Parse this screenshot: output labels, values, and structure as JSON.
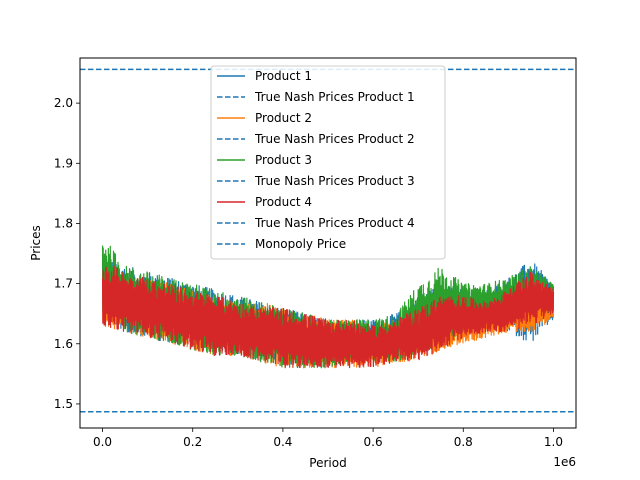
{
  "chart_data": {
    "type": "line",
    "title": "",
    "xlabel": "Period",
    "ylabel": "Prices",
    "x_offset_label": "1e6",
    "xlim": [
      -0.05,
      1.05
    ],
    "ylim": [
      1.46,
      2.075
    ],
    "x_scale_factor": 1000000,
    "x_ticks": [
      0.0,
      0.2,
      0.4,
      0.6,
      0.8,
      1.0
    ],
    "x_tick_labels": [
      "0.0",
      "0.2",
      "0.4",
      "0.6",
      "0.8",
      "1.0"
    ],
    "y_ticks": [
      1.5,
      1.6,
      1.7,
      1.8,
      1.9,
      2.0
    ],
    "y_tick_labels": [
      "1.5",
      "1.6",
      "1.7",
      "1.8",
      "1.9",
      "2.0"
    ],
    "grid": false,
    "legend_position": "upper-center",
    "reference_lines": [
      {
        "name": "True Nash Prices Product 1",
        "value": 1.487,
        "color": "#1f77b4",
        "style": "dashed"
      },
      {
        "name": "True Nash Prices Product 2",
        "value": 1.487,
        "color": "#1f77b4",
        "style": "dashed"
      },
      {
        "name": "True Nash Prices Product 3",
        "value": 1.487,
        "color": "#1f77b4",
        "style": "dashed"
      },
      {
        "name": "True Nash Prices Product 4",
        "value": 1.487,
        "color": "#1f77b4",
        "style": "dashed"
      },
      {
        "name": "Monopoly Price",
        "value": 2.056,
        "color": "#1f77b4",
        "style": "dashed"
      }
    ],
    "series": [
      {
        "name": "Product 1",
        "color": "#1f77b4",
        "x": [
          0.0,
          0.05,
          0.1,
          0.15,
          0.2,
          0.25,
          0.3,
          0.35,
          0.4,
          0.45,
          0.5,
          0.55,
          0.6,
          0.65,
          0.7,
          0.75,
          0.8,
          0.85,
          0.9,
          0.95,
          1.0
        ],
        "low": [
          1.64,
          1.62,
          1.61,
          1.6,
          1.6,
          1.59,
          1.58,
          1.57,
          1.57,
          1.56,
          1.57,
          1.57,
          1.57,
          1.58,
          1.58,
          1.6,
          1.62,
          1.62,
          1.62,
          1.6,
          1.64
        ],
        "high": [
          1.75,
          1.73,
          1.72,
          1.71,
          1.7,
          1.69,
          1.68,
          1.67,
          1.66,
          1.65,
          1.64,
          1.64,
          1.64,
          1.65,
          1.68,
          1.7,
          1.69,
          1.69,
          1.71,
          1.74,
          1.7
        ]
      },
      {
        "name": "Product 2",
        "color": "#ff7f0e",
        "x": [
          0.0,
          0.05,
          0.1,
          0.15,
          0.2,
          0.25,
          0.3,
          0.35,
          0.4,
          0.45,
          0.5,
          0.55,
          0.6,
          0.65,
          0.7,
          0.75,
          0.8,
          0.85,
          0.9,
          0.95,
          1.0
        ],
        "low": [
          1.63,
          1.62,
          1.61,
          1.6,
          1.59,
          1.58,
          1.58,
          1.57,
          1.56,
          1.56,
          1.56,
          1.56,
          1.56,
          1.57,
          1.57,
          1.59,
          1.6,
          1.61,
          1.62,
          1.62,
          1.64
        ],
        "high": [
          1.74,
          1.72,
          1.71,
          1.7,
          1.69,
          1.68,
          1.67,
          1.67,
          1.66,
          1.65,
          1.64,
          1.64,
          1.63,
          1.64,
          1.66,
          1.68,
          1.67,
          1.67,
          1.67,
          1.69,
          1.7
        ]
      },
      {
        "name": "Product 3",
        "color": "#2ca02c",
        "x": [
          0.0,
          0.05,
          0.1,
          0.15,
          0.2,
          0.25,
          0.3,
          0.35,
          0.4,
          0.45,
          0.5,
          0.55,
          0.6,
          0.65,
          0.7,
          0.75,
          0.8,
          0.85,
          0.9,
          0.95,
          1.0
        ],
        "low": [
          1.64,
          1.62,
          1.61,
          1.6,
          1.59,
          1.58,
          1.58,
          1.57,
          1.56,
          1.56,
          1.56,
          1.57,
          1.57,
          1.57,
          1.58,
          1.6,
          1.62,
          1.63,
          1.64,
          1.65,
          1.65
        ],
        "high": [
          1.78,
          1.73,
          1.72,
          1.71,
          1.7,
          1.69,
          1.68,
          1.67,
          1.66,
          1.65,
          1.64,
          1.64,
          1.64,
          1.65,
          1.7,
          1.73,
          1.7,
          1.7,
          1.71,
          1.73,
          1.7
        ]
      },
      {
        "name": "Product 4",
        "color": "#d62728",
        "x": [
          0.0,
          0.05,
          0.1,
          0.15,
          0.2,
          0.25,
          0.3,
          0.35,
          0.4,
          0.45,
          0.5,
          0.55,
          0.6,
          0.65,
          0.7,
          0.75,
          0.8,
          0.85,
          0.9,
          0.95,
          1.0
        ],
        "low": [
          1.63,
          1.62,
          1.61,
          1.6,
          1.59,
          1.58,
          1.58,
          1.57,
          1.56,
          1.56,
          1.56,
          1.56,
          1.56,
          1.57,
          1.57,
          1.59,
          1.61,
          1.62,
          1.62,
          1.63,
          1.65
        ],
        "high": [
          1.74,
          1.72,
          1.71,
          1.7,
          1.69,
          1.68,
          1.67,
          1.66,
          1.66,
          1.65,
          1.64,
          1.64,
          1.63,
          1.64,
          1.66,
          1.68,
          1.68,
          1.67,
          1.69,
          1.72,
          1.69
        ]
      }
    ],
    "legend": [
      {
        "label": "Product 1",
        "color": "#1f77b4",
        "style": "solid"
      },
      {
        "label": "True Nash Prices Product 1",
        "color": "#1f77b4",
        "style": "dashed"
      },
      {
        "label": "Product 2",
        "color": "#ff7f0e",
        "style": "solid"
      },
      {
        "label": "True Nash Prices Product 2",
        "color": "#1f77b4",
        "style": "dashed"
      },
      {
        "label": "Product 3",
        "color": "#2ca02c",
        "style": "solid"
      },
      {
        "label": "True Nash Prices Product 3",
        "color": "#1f77b4",
        "style": "dashed"
      },
      {
        "label": "Product 4",
        "color": "#d62728",
        "style": "solid"
      },
      {
        "label": "True Nash Prices Product 4",
        "color": "#1f77b4",
        "style": "dashed"
      },
      {
        "label": "Monopoly Price",
        "color": "#1f77b4",
        "style": "dashed"
      }
    ]
  }
}
